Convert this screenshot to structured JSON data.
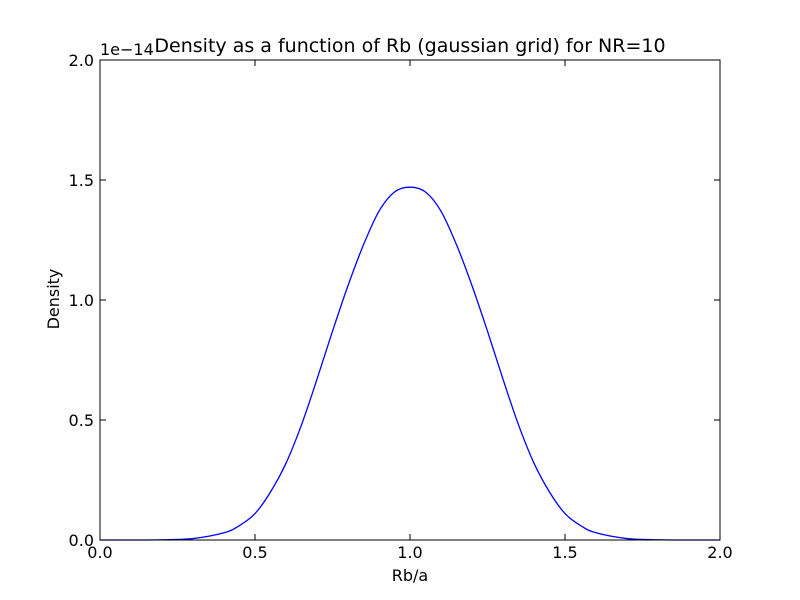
{
  "chart_data": {
    "type": "line",
    "title": "Density as a function of Rb (gaussian grid) for NR=10",
    "xlabel": "Rb/a",
    "ylabel": "Density",
    "offset_text": "1e−14",
    "xlim": [
      0.0,
      2.0
    ],
    "ylim": [
      0.0,
      2.0
    ],
    "xticks": [
      0.0,
      0.5,
      1.0,
      1.5,
      2.0
    ],
    "xtick_labels": [
      "0.0",
      "0.5",
      "1.0",
      "1.5",
      "2.0"
    ],
    "yticks": [
      0.0,
      0.5,
      1.0,
      1.5,
      2.0
    ],
    "ytick_labels": [
      "0.0",
      "0.5",
      "1.0",
      "1.5",
      "2.0"
    ],
    "grid": false,
    "series": [
      {
        "color": "#0000ff",
        "x": [
          0.0,
          0.1,
          0.2,
          0.3,
          0.4,
          0.45,
          0.5,
          0.55,
          0.6,
          0.65,
          0.7,
          0.75,
          0.8,
          0.85,
          0.9,
          0.95,
          1.0,
          1.05,
          1.1,
          1.15,
          1.2,
          1.25,
          1.3,
          1.35,
          1.4,
          1.45,
          1.5,
          1.55,
          1.6,
          1.7,
          1.8,
          1.9,
          2.0
        ],
        "y": [
          0.0,
          0.0,
          0.001,
          0.006,
          0.03,
          0.06,
          0.11,
          0.2,
          0.32,
          0.48,
          0.67,
          0.87,
          1.06,
          1.23,
          1.37,
          1.45,
          1.47,
          1.45,
          1.37,
          1.23,
          1.06,
          0.87,
          0.67,
          0.48,
          0.32,
          0.2,
          0.11,
          0.06,
          0.03,
          0.006,
          0.001,
          0.0,
          0.0
        ]
      }
    ]
  }
}
